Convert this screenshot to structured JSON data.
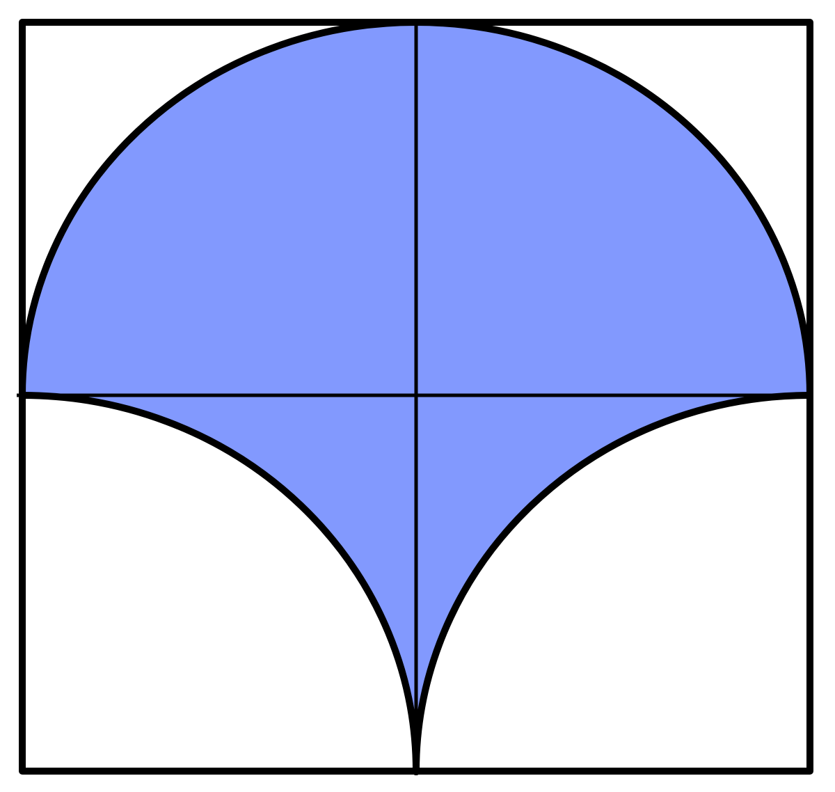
{
  "diagram": {
    "colors": {
      "shaded_fill": "#8299FE",
      "stroke": "#000000",
      "background": "#FFFFFF"
    }
  }
}
